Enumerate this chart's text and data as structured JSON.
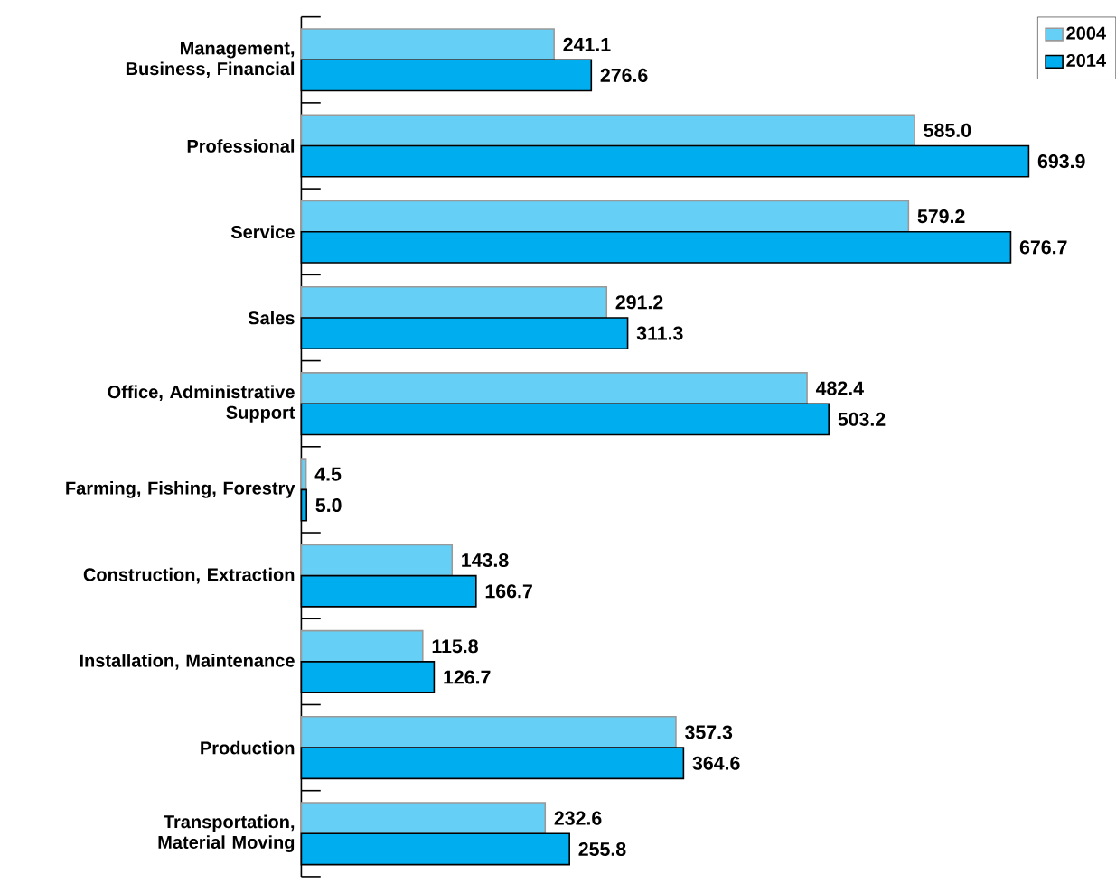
{
  "chart_data": {
    "type": "bar",
    "orientation": "horizontal",
    "categories": [
      "Management, Business, Financial",
      "Professional",
      "Service",
      "Sales",
      "Office, Administrative Support",
      "Farming, Fishing, Forestry",
      "Construction, Extraction",
      "Installation, Maintenance",
      "Production",
      "Transportation, Material Moving"
    ],
    "series": [
      {
        "name": "2004",
        "color": "#66cff5",
        "values": [
          241.1,
          585.0,
          579.2,
          291.2,
          482.4,
          4.5,
          143.8,
          115.8,
          357.3,
          232.6
        ],
        "value_labels": [
          "241.1",
          "585.0",
          "579.2",
          "291.2",
          "482.4",
          "4.5",
          "143.8",
          "115.8",
          "357.3",
          "232.6"
        ]
      },
      {
        "name": "2014",
        "color": "#00aeef",
        "values": [
          276.6,
          693.9,
          676.7,
          311.3,
          503.2,
          5.0,
          166.7,
          126.7,
          364.6,
          255.8
        ],
        "value_labels": [
          "276.6",
          "693.9",
          "676.7",
          "311.3",
          "503.2",
          "5.0",
          "166.7",
          "126.7",
          "364.6",
          "255.8"
        ]
      }
    ],
    "legend": "top right"
  }
}
